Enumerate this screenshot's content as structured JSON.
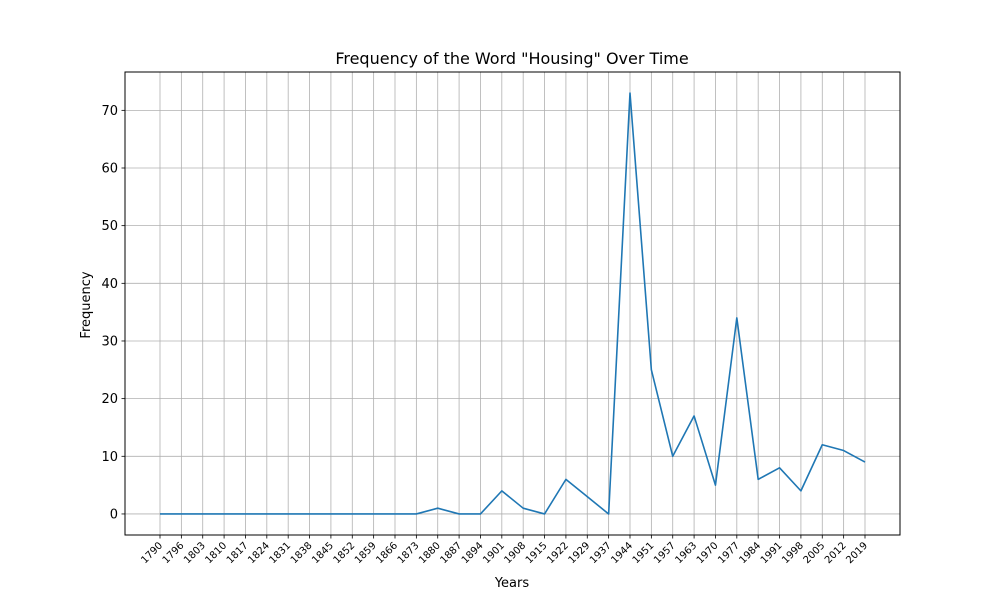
{
  "chart_data": {
    "type": "line",
    "title": "Frequency of the Word \"Housing\" Over Time",
    "xlabel": "Years",
    "ylabel": "Frequency",
    "grid": true,
    "x": [
      "1790",
      "1796",
      "1803",
      "1810",
      "1817",
      "1824",
      "1831",
      "1838",
      "1845",
      "1852",
      "1859",
      "1866",
      "1873",
      "1880",
      "1887",
      "1894",
      "1901",
      "1908",
      "1915",
      "1922",
      "1929",
      "1937",
      "1944",
      "1951",
      "1957",
      "1963",
      "1970",
      "1977",
      "1984",
      "1991",
      "1998",
      "2005",
      "2012",
      "2019"
    ],
    "series": [
      {
        "values": [
          0,
          0,
          0,
          0,
          0,
          0,
          0,
          0,
          0,
          0,
          0,
          0,
          0,
          1,
          0,
          0,
          4,
          1,
          0,
          6,
          3,
          0,
          73,
          25,
          10,
          17,
          5,
          34,
          6,
          8,
          4,
          12,
          11,
          9
        ],
        "color": "#1f77b4"
      }
    ],
    "yticks": [
      0,
      10,
      20,
      30,
      40,
      50,
      60,
      70
    ],
    "ylim": [
      -3.65,
      76.65
    ]
  }
}
